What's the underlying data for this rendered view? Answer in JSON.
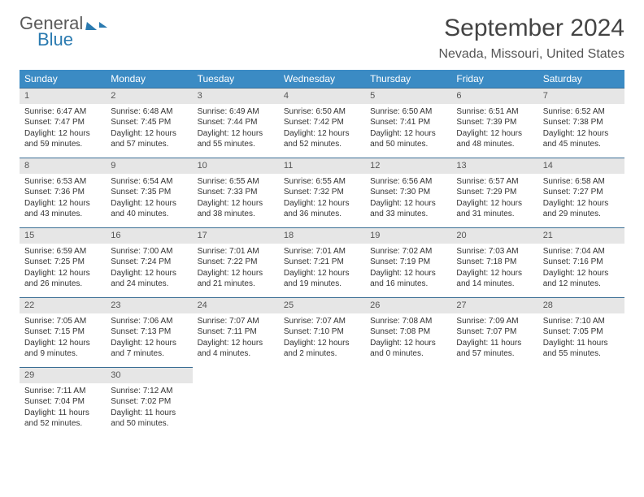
{
  "logo": {
    "part1": "General",
    "part2": "Blue"
  },
  "title": "September 2024",
  "location": "Nevada, Missouri, United States",
  "weekdays": [
    "Sunday",
    "Monday",
    "Tuesday",
    "Wednesday",
    "Thursday",
    "Friday",
    "Saturday"
  ],
  "colors": {
    "header_bg": "#3b8bc4",
    "header_text": "#ffffff",
    "daynum_bg": "#e6e6e6",
    "row_border": "#3b6e94",
    "body_text": "#333333",
    "logo_gray": "#5a5a5a",
    "logo_blue": "#2a7ab0"
  },
  "weeks": [
    [
      {
        "n": "1",
        "sr": "6:47 AM",
        "ss": "7:47 PM",
        "dl": "12 hours and 59 minutes."
      },
      {
        "n": "2",
        "sr": "6:48 AM",
        "ss": "7:45 PM",
        "dl": "12 hours and 57 minutes."
      },
      {
        "n": "3",
        "sr": "6:49 AM",
        "ss": "7:44 PM",
        "dl": "12 hours and 55 minutes."
      },
      {
        "n": "4",
        "sr": "6:50 AM",
        "ss": "7:42 PM",
        "dl": "12 hours and 52 minutes."
      },
      {
        "n": "5",
        "sr": "6:50 AM",
        "ss": "7:41 PM",
        "dl": "12 hours and 50 minutes."
      },
      {
        "n": "6",
        "sr": "6:51 AM",
        "ss": "7:39 PM",
        "dl": "12 hours and 48 minutes."
      },
      {
        "n": "7",
        "sr": "6:52 AM",
        "ss": "7:38 PM",
        "dl": "12 hours and 45 minutes."
      }
    ],
    [
      {
        "n": "8",
        "sr": "6:53 AM",
        "ss": "7:36 PM",
        "dl": "12 hours and 43 minutes."
      },
      {
        "n": "9",
        "sr": "6:54 AM",
        "ss": "7:35 PM",
        "dl": "12 hours and 40 minutes."
      },
      {
        "n": "10",
        "sr": "6:55 AM",
        "ss": "7:33 PM",
        "dl": "12 hours and 38 minutes."
      },
      {
        "n": "11",
        "sr": "6:55 AM",
        "ss": "7:32 PM",
        "dl": "12 hours and 36 minutes."
      },
      {
        "n": "12",
        "sr": "6:56 AM",
        "ss": "7:30 PM",
        "dl": "12 hours and 33 minutes."
      },
      {
        "n": "13",
        "sr": "6:57 AM",
        "ss": "7:29 PM",
        "dl": "12 hours and 31 minutes."
      },
      {
        "n": "14",
        "sr": "6:58 AM",
        "ss": "7:27 PM",
        "dl": "12 hours and 29 minutes."
      }
    ],
    [
      {
        "n": "15",
        "sr": "6:59 AM",
        "ss": "7:25 PM",
        "dl": "12 hours and 26 minutes."
      },
      {
        "n": "16",
        "sr": "7:00 AM",
        "ss": "7:24 PM",
        "dl": "12 hours and 24 minutes."
      },
      {
        "n": "17",
        "sr": "7:01 AM",
        "ss": "7:22 PM",
        "dl": "12 hours and 21 minutes."
      },
      {
        "n": "18",
        "sr": "7:01 AM",
        "ss": "7:21 PM",
        "dl": "12 hours and 19 minutes."
      },
      {
        "n": "19",
        "sr": "7:02 AM",
        "ss": "7:19 PM",
        "dl": "12 hours and 16 minutes."
      },
      {
        "n": "20",
        "sr": "7:03 AM",
        "ss": "7:18 PM",
        "dl": "12 hours and 14 minutes."
      },
      {
        "n": "21",
        "sr": "7:04 AM",
        "ss": "7:16 PM",
        "dl": "12 hours and 12 minutes."
      }
    ],
    [
      {
        "n": "22",
        "sr": "7:05 AM",
        "ss": "7:15 PM",
        "dl": "12 hours and 9 minutes."
      },
      {
        "n": "23",
        "sr": "7:06 AM",
        "ss": "7:13 PM",
        "dl": "12 hours and 7 minutes."
      },
      {
        "n": "24",
        "sr": "7:07 AM",
        "ss": "7:11 PM",
        "dl": "12 hours and 4 minutes."
      },
      {
        "n": "25",
        "sr": "7:07 AM",
        "ss": "7:10 PM",
        "dl": "12 hours and 2 minutes."
      },
      {
        "n": "26",
        "sr": "7:08 AM",
        "ss": "7:08 PM",
        "dl": "12 hours and 0 minutes."
      },
      {
        "n": "27",
        "sr": "7:09 AM",
        "ss": "7:07 PM",
        "dl": "11 hours and 57 minutes."
      },
      {
        "n": "28",
        "sr": "7:10 AM",
        "ss": "7:05 PM",
        "dl": "11 hours and 55 minutes."
      }
    ],
    [
      {
        "n": "29",
        "sr": "7:11 AM",
        "ss": "7:04 PM",
        "dl": "11 hours and 52 minutes."
      },
      {
        "n": "30",
        "sr": "7:12 AM",
        "ss": "7:02 PM",
        "dl": "11 hours and 50 minutes."
      },
      {
        "empty": true
      },
      {
        "empty": true
      },
      {
        "empty": true
      },
      {
        "empty": true
      },
      {
        "empty": true
      }
    ]
  ],
  "labels": {
    "sunrise": "Sunrise:",
    "sunset": "Sunset:",
    "daylight": "Daylight:"
  }
}
